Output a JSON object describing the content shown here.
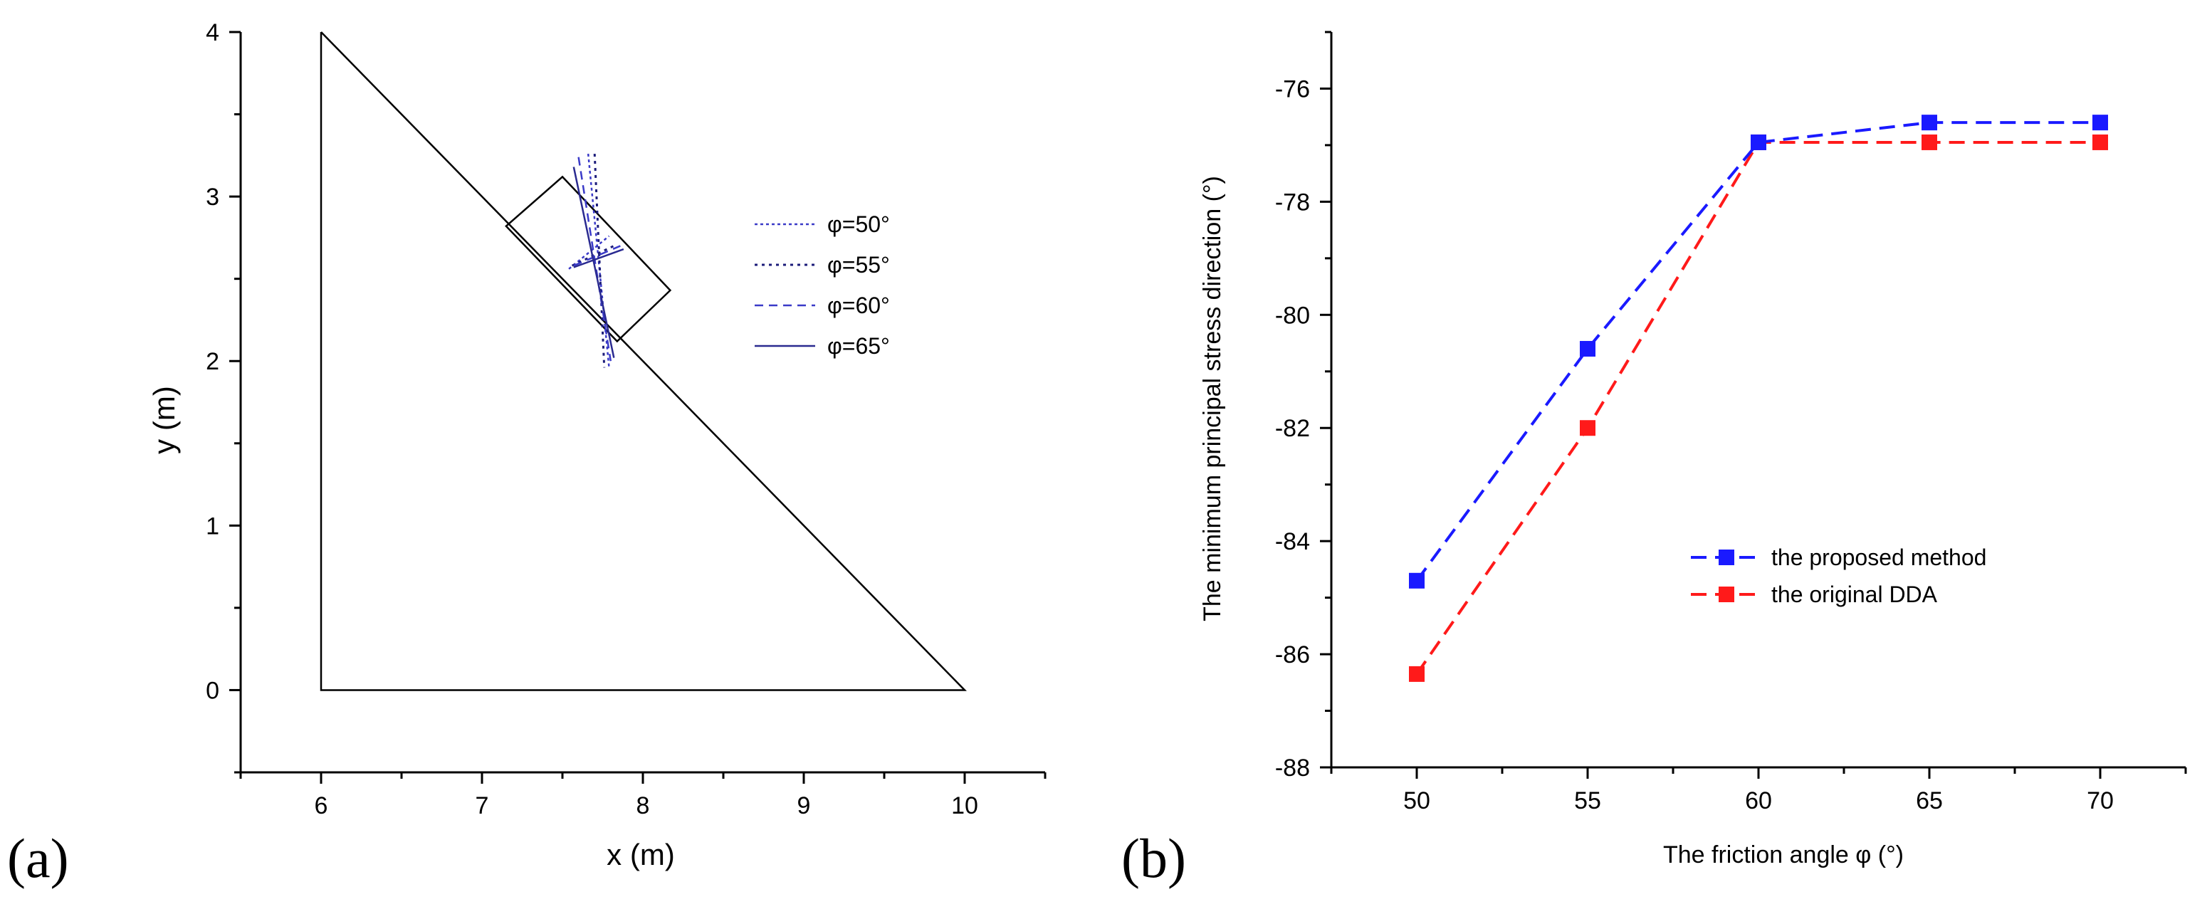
{
  "panels": [
    {
      "label": "(a)"
    },
    {
      "label": "(b)"
    }
  ],
  "chart_data": [
    {
      "type": "line",
      "title": "",
      "xlabel": "x (m)",
      "ylabel": "y (m)",
      "xlim": [
        5.5,
        10.5
      ],
      "ylim": [
        -0.5,
        4
      ],
      "xticks": [
        "6",
        "7",
        "8",
        "9",
        "10"
      ],
      "yticks": [
        "0",
        "1",
        "2",
        "3",
        "4"
      ],
      "xtick_values": [
        6,
        7,
        8,
        9,
        10
      ],
      "ytick_values": [
        0,
        1,
        2,
        3,
        4
      ],
      "slope": [
        [
          6,
          4
        ],
        [
          6,
          0
        ],
        [
          10,
          0
        ],
        [
          6,
          4
        ]
      ],
      "block": [
        [
          7.15,
          2.82
        ],
        [
          7.5,
          3.12
        ],
        [
          8.17,
          2.43
        ],
        [
          7.84,
          2.12
        ]
      ],
      "legend": {
        "position": "right",
        "entries": [
          {
            "label": "φ=50°",
            "style": "dotted-dense",
            "color": "#3a3ac8"
          },
          {
            "label": "φ=55°",
            "style": "dotted",
            "color": "#1c1c7a"
          },
          {
            "label": "φ=60°",
            "style": "dashed",
            "color": "#3a3ac8"
          },
          {
            "label": "φ=65°",
            "style": "solid",
            "color": "#2a2a90"
          }
        ]
      },
      "series": [
        {
          "name": "φ=50°",
          "segments": [
            [
              [
                7.66,
                3.26
              ],
              [
                7.79,
                1.96
              ]
            ],
            [
              [
                7.54,
                2.56
              ],
              [
                7.79,
                2.76
              ]
            ]
          ]
        },
        {
          "name": "φ=55°",
          "segments": [
            [
              [
                7.7,
                3.26
              ],
              [
                7.76,
                1.96
              ]
            ],
            [
              [
                7.56,
                2.58
              ],
              [
                7.82,
                2.7
              ]
            ]
          ]
        },
        {
          "name": "φ=60°",
          "segments": [
            [
              [
                7.6,
                3.24
              ],
              [
                7.8,
                2.0
              ]
            ],
            [
              [
                7.57,
                2.58
              ],
              [
                7.86,
                2.7
              ]
            ]
          ]
        },
        {
          "name": "φ=65°",
          "segments": [
            [
              [
                7.57,
                3.18
              ],
              [
                7.82,
                2.02
              ]
            ],
            [
              [
                7.57,
                2.57
              ],
              [
                7.88,
                2.68
              ]
            ]
          ]
        }
      ]
    },
    {
      "type": "line",
      "title": "",
      "xlabel": "The friction angle φ  (°)",
      "ylabel": "The minimum principal stress direction (°)",
      "xlim": [
        47.5,
        72.5
      ],
      "ylim": [
        -88,
        -75
      ],
      "xticks": [
        "50",
        "55",
        "60",
        "65",
        "70"
      ],
      "yticks": [
        "-76",
        "-78",
        "-80",
        "-82",
        "-84",
        "-86",
        "-88"
      ],
      "xtick_values": [
        50,
        55,
        60,
        65,
        70
      ],
      "ytick_values": [
        -76,
        -78,
        -80,
        -82,
        -84,
        -86,
        -88
      ],
      "legend": {
        "position": "center-right"
      },
      "series": [
        {
          "name": "the proposed method",
          "color": "#1a1aff",
          "x": [
            50,
            55,
            60,
            65,
            70
          ],
          "values": [
            -84.7,
            -80.6,
            -76.95,
            -76.6,
            -76.6
          ]
        },
        {
          "name": "the original DDA",
          "color": "#ff1a1a",
          "x": [
            50,
            55,
            60,
            65,
            70
          ],
          "values": [
            -86.35,
            -82.0,
            -76.95,
            -76.95,
            -76.95
          ]
        }
      ]
    }
  ]
}
